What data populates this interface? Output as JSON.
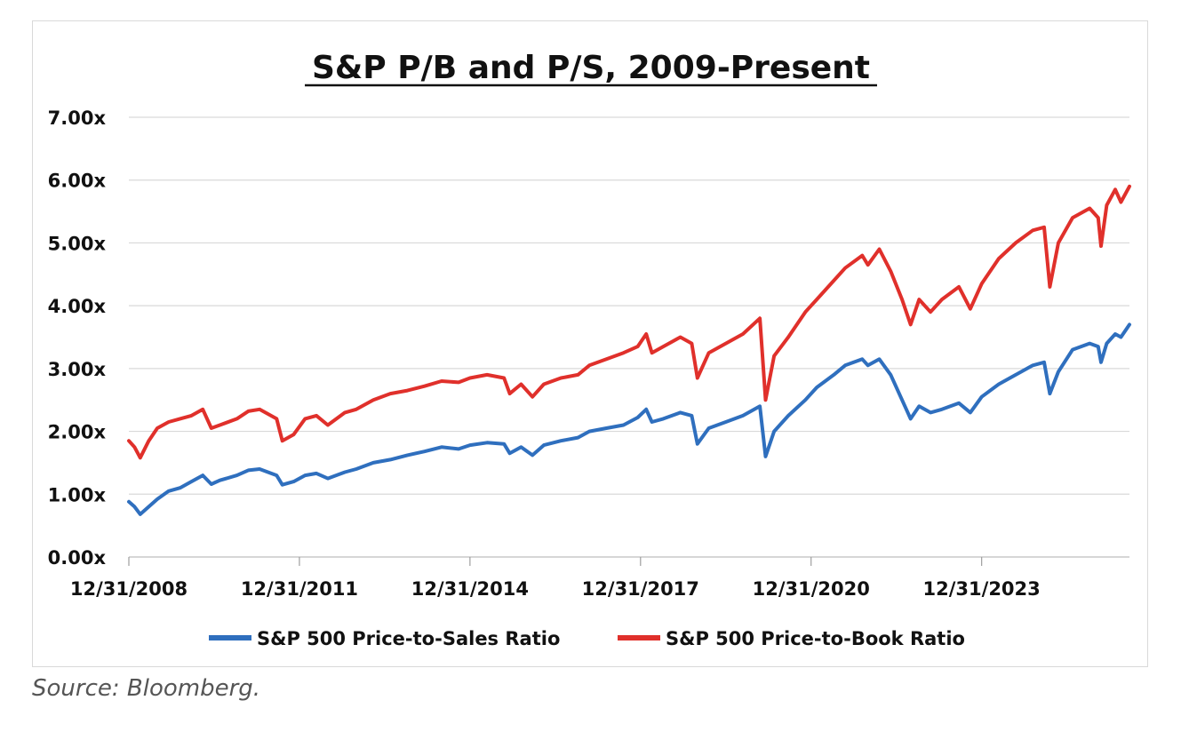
{
  "source": "Source: Bloomberg.",
  "chart_data": {
    "type": "line",
    "title": "S&P P/B and P/S, 2009-Present",
    "xlabel": "",
    "ylabel": "",
    "ylim": [
      0,
      7
    ],
    "y_ticks": [
      "0.00x",
      "1.00x",
      "2.00x",
      "3.00x",
      "4.00x",
      "5.00x",
      "6.00x",
      "7.00x"
    ],
    "x_tick_labels": [
      "12/31/2008",
      "12/31/2011",
      "12/31/2014",
      "12/31/2017",
      "12/31/2020",
      "12/31/2023"
    ],
    "x_range": [
      2009.0,
      2026.6
    ],
    "grid": true,
    "legend_position": "bottom",
    "series": [
      {
        "name": "S&P 500 Price-to-Sales Ratio",
        "color": "#2f6fbe",
        "points": [
          [
            2009.0,
            0.88
          ],
          [
            2009.1,
            0.8
          ],
          [
            2009.2,
            0.68
          ],
          [
            2009.35,
            0.8
          ],
          [
            2009.5,
            0.92
          ],
          [
            2009.7,
            1.05
          ],
          [
            2009.9,
            1.1
          ],
          [
            2010.1,
            1.2
          ],
          [
            2010.3,
            1.3
          ],
          [
            2010.45,
            1.16
          ],
          [
            2010.6,
            1.22
          ],
          [
            2010.9,
            1.3
          ],
          [
            2011.1,
            1.38
          ],
          [
            2011.3,
            1.4
          ],
          [
            2011.6,
            1.3
          ],
          [
            2011.7,
            1.15
          ],
          [
            2011.9,
            1.2
          ],
          [
            2012.1,
            1.3
          ],
          [
            2012.3,
            1.33
          ],
          [
            2012.5,
            1.25
          ],
          [
            2012.8,
            1.35
          ],
          [
            2013.0,
            1.4
          ],
          [
            2013.3,
            1.5
          ],
          [
            2013.6,
            1.55
          ],
          [
            2013.9,
            1.62
          ],
          [
            2014.2,
            1.68
          ],
          [
            2014.5,
            1.75
          ],
          [
            2014.8,
            1.72
          ],
          [
            2015.0,
            1.78
          ],
          [
            2015.3,
            1.82
          ],
          [
            2015.6,
            1.8
          ],
          [
            2015.7,
            1.65
          ],
          [
            2015.9,
            1.75
          ],
          [
            2016.1,
            1.62
          ],
          [
            2016.3,
            1.78
          ],
          [
            2016.6,
            1.85
          ],
          [
            2016.9,
            1.9
          ],
          [
            2017.1,
            2.0
          ],
          [
            2017.4,
            2.05
          ],
          [
            2017.7,
            2.1
          ],
          [
            2017.95,
            2.22
          ],
          [
            2018.1,
            2.35
          ],
          [
            2018.2,
            2.15
          ],
          [
            2018.4,
            2.2
          ],
          [
            2018.7,
            2.3
          ],
          [
            2018.9,
            2.25
          ],
          [
            2019.0,
            1.8
          ],
          [
            2019.2,
            2.05
          ],
          [
            2019.5,
            2.15
          ],
          [
            2019.8,
            2.25
          ],
          [
            2020.1,
            2.4
          ],
          [
            2020.2,
            1.6
          ],
          [
            2020.35,
            2.0
          ],
          [
            2020.6,
            2.25
          ],
          [
            2020.9,
            2.5
          ],
          [
            2021.1,
            2.7
          ],
          [
            2021.4,
            2.9
          ],
          [
            2021.6,
            3.05
          ],
          [
            2021.9,
            3.15
          ],
          [
            2022.0,
            3.05
          ],
          [
            2022.2,
            3.15
          ],
          [
            2022.4,
            2.9
          ],
          [
            2022.6,
            2.5
          ],
          [
            2022.75,
            2.2
          ],
          [
            2022.9,
            2.4
          ],
          [
            2023.1,
            2.3
          ],
          [
            2023.3,
            2.35
          ],
          [
            2023.6,
            2.45
          ],
          [
            2023.8,
            2.3
          ],
          [
            2024.0,
            2.55
          ],
          [
            2024.3,
            2.75
          ],
          [
            2024.6,
            2.9
          ],
          [
            2024.9,
            3.05
          ],
          [
            2025.1,
            3.1
          ],
          [
            2025.2,
            2.6
          ],
          [
            2025.35,
            2.95
          ],
          [
            2025.6,
            3.3
          ],
          [
            2025.9,
            3.4
          ],
          [
            2026.05,
            3.35
          ],
          [
            2026.1,
            3.1
          ],
          [
            2026.2,
            3.4
          ],
          [
            2026.35,
            3.55
          ],
          [
            2026.45,
            3.5
          ],
          [
            2026.6,
            3.7
          ]
        ]
      },
      {
        "name": "S&P 500 Price-to-Book Ratio",
        "color": "#e0302b",
        "points": [
          [
            2009.0,
            1.85
          ],
          [
            2009.1,
            1.75
          ],
          [
            2009.2,
            1.58
          ],
          [
            2009.35,
            1.85
          ],
          [
            2009.5,
            2.05
          ],
          [
            2009.7,
            2.15
          ],
          [
            2009.9,
            2.2
          ],
          [
            2010.1,
            2.25
          ],
          [
            2010.3,
            2.35
          ],
          [
            2010.45,
            2.05
          ],
          [
            2010.6,
            2.1
          ],
          [
            2010.9,
            2.2
          ],
          [
            2011.1,
            2.32
          ],
          [
            2011.3,
            2.35
          ],
          [
            2011.6,
            2.2
          ],
          [
            2011.7,
            1.85
          ],
          [
            2011.9,
            1.95
          ],
          [
            2012.1,
            2.2
          ],
          [
            2012.3,
            2.25
          ],
          [
            2012.5,
            2.1
          ],
          [
            2012.8,
            2.3
          ],
          [
            2013.0,
            2.35
          ],
          [
            2013.3,
            2.5
          ],
          [
            2013.6,
            2.6
          ],
          [
            2013.9,
            2.65
          ],
          [
            2014.2,
            2.72
          ],
          [
            2014.5,
            2.8
          ],
          [
            2014.8,
            2.78
          ],
          [
            2015.0,
            2.85
          ],
          [
            2015.3,
            2.9
          ],
          [
            2015.6,
            2.85
          ],
          [
            2015.7,
            2.6
          ],
          [
            2015.9,
            2.75
          ],
          [
            2016.1,
            2.55
          ],
          [
            2016.3,
            2.75
          ],
          [
            2016.6,
            2.85
          ],
          [
            2016.9,
            2.9
          ],
          [
            2017.1,
            3.05
          ],
          [
            2017.4,
            3.15
          ],
          [
            2017.7,
            3.25
          ],
          [
            2017.95,
            3.35
          ],
          [
            2018.1,
            3.55
          ],
          [
            2018.2,
            3.25
          ],
          [
            2018.4,
            3.35
          ],
          [
            2018.7,
            3.5
          ],
          [
            2018.9,
            3.4
          ],
          [
            2019.0,
            2.85
          ],
          [
            2019.2,
            3.25
          ],
          [
            2019.5,
            3.4
          ],
          [
            2019.8,
            3.55
          ],
          [
            2020.1,
            3.8
          ],
          [
            2020.2,
            2.5
          ],
          [
            2020.35,
            3.2
          ],
          [
            2020.6,
            3.5
          ],
          [
            2020.9,
            3.9
          ],
          [
            2021.1,
            4.1
          ],
          [
            2021.4,
            4.4
          ],
          [
            2021.6,
            4.6
          ],
          [
            2021.9,
            4.8
          ],
          [
            2022.0,
            4.65
          ],
          [
            2022.2,
            4.9
          ],
          [
            2022.4,
            4.55
          ],
          [
            2022.6,
            4.1
          ],
          [
            2022.75,
            3.7
          ],
          [
            2022.9,
            4.1
          ],
          [
            2023.1,
            3.9
          ],
          [
            2023.3,
            4.1
          ],
          [
            2023.6,
            4.3
          ],
          [
            2023.8,
            3.95
          ],
          [
            2024.0,
            4.35
          ],
          [
            2024.3,
            4.75
          ],
          [
            2024.6,
            5.0
          ],
          [
            2024.9,
            5.2
          ],
          [
            2025.1,
            5.25
          ],
          [
            2025.2,
            4.3
          ],
          [
            2025.35,
            5.0
          ],
          [
            2025.6,
            5.4
          ],
          [
            2025.9,
            5.55
          ],
          [
            2026.05,
            5.4
          ],
          [
            2026.1,
            4.95
          ],
          [
            2026.2,
            5.6
          ],
          [
            2026.35,
            5.85
          ],
          [
            2026.45,
            5.65
          ],
          [
            2026.6,
            5.9
          ]
        ]
      }
    ]
  }
}
